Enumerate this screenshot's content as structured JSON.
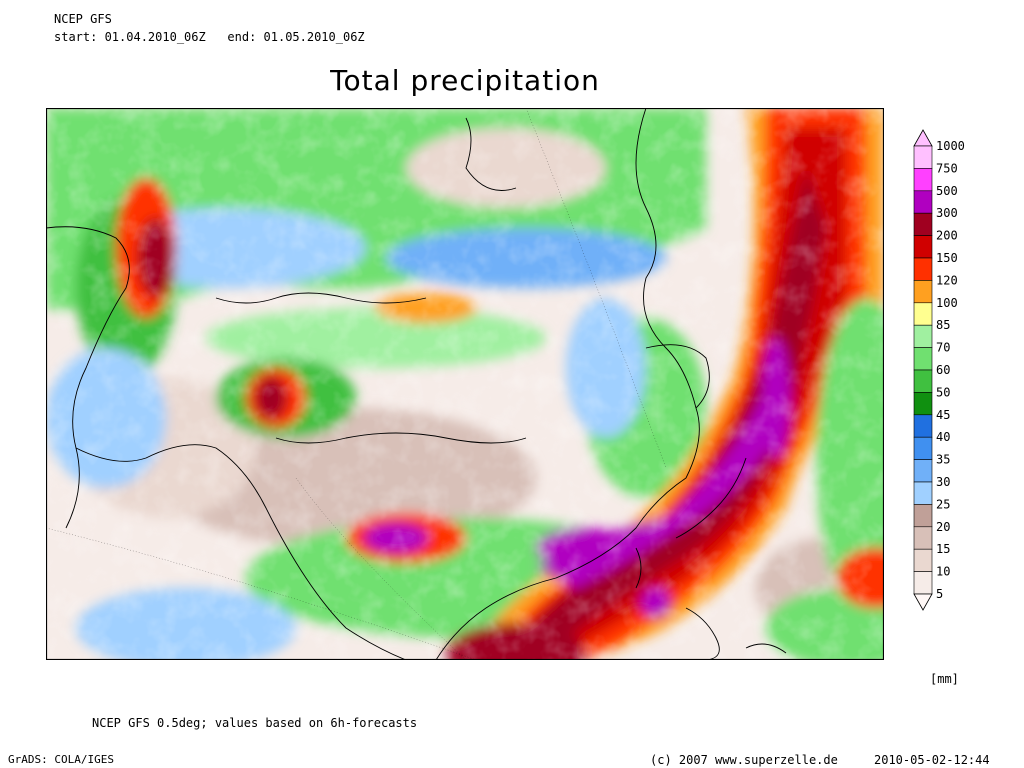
{
  "header": {
    "model": "NCEP GFS",
    "period": "start: 01.04.2010_06Z   end: 01.05.2010_06Z"
  },
  "title": "Total precipitation",
  "colorbar": {
    "unit": "[mm]",
    "levels": [
      {
        "value": "1000",
        "color": "#ffc0ff"
      },
      {
        "value": "750",
        "color": "#ff40ff"
      },
      {
        "value": "500",
        "color": "#b000c0"
      },
      {
        "value": "300",
        "color": "#a00020"
      },
      {
        "value": "200",
        "color": "#d00000"
      },
      {
        "value": "150",
        "color": "#ff3000"
      },
      {
        "value": "120",
        "color": "#ffa020"
      },
      {
        "value": "100",
        "color": "#ffff90"
      },
      {
        "value": "85",
        "color": "#a0f0a0"
      },
      {
        "value": "70",
        "color": "#70e070"
      },
      {
        "value": "60",
        "color": "#40c040"
      },
      {
        "value": "50",
        "color": "#109010"
      },
      {
        "value": "45",
        "color": "#2070e0"
      },
      {
        "value": "40",
        "color": "#4090f0"
      },
      {
        "value": "35",
        "color": "#70b0f8"
      },
      {
        "value": "30",
        "color": "#a0d0ff"
      },
      {
        "value": "25",
        "color": "#c0a098"
      },
      {
        "value": "20",
        "color": "#d8c0b8"
      },
      {
        "value": "15",
        "color": "#ead8d0"
      },
      {
        "value": "10",
        "color": "#f6ece8"
      },
      {
        "value": "5",
        "color": "#fff8f6"
      }
    ]
  },
  "footer": {
    "note": "NCEP GFS 0.5deg; values based on 6h-forecasts",
    "software": "GrADS: COLA/IGES",
    "copyright": "(c) 2007 www.superzelle.de",
    "timestamp": "2010-05-02-12:44"
  }
}
